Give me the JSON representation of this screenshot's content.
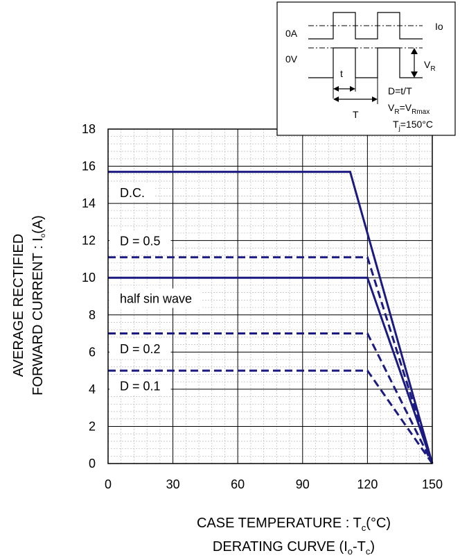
{
  "chart_data": {
    "type": "line",
    "xlabel": {
      "main": "CASE TEMPERATURE : T",
      "sub": "c",
      "tail": "(°C)"
    },
    "caption": {
      "main": "DERATING CURVE (I",
      "sub1": "o",
      "mid": "-T",
      "sub2": "c",
      "tail": ")"
    },
    "ylabel": {
      "line1": "AVERAGE RECTIFIED",
      "line2_main": "FORWARD CURRENT : I",
      "line2_sub": "o",
      "line2_tail": "(A)"
    },
    "xlim": [
      0,
      150
    ],
    "ylim": [
      0,
      18
    ],
    "xticks": [
      "0",
      "30",
      "60",
      "90",
      "120",
      "150"
    ],
    "yticks": [
      "0",
      "2",
      "4",
      "6",
      "8",
      "10",
      "12",
      "14",
      "16",
      "18"
    ],
    "grid": "major and minor",
    "series": [
      {
        "name": "D.C.",
        "style": "solid",
        "x": [
          0,
          112,
          150
        ],
        "y": [
          15.7,
          15.7,
          0
        ]
      },
      {
        "name": "D = 0.5",
        "style": "dashed",
        "x": [
          0,
          120,
          150
        ],
        "y": [
          11.1,
          11.1,
          0
        ]
      },
      {
        "name": "half sin wave",
        "style": "solid",
        "x": [
          0,
          120,
          150
        ],
        "y": [
          10,
          10,
          0
        ]
      },
      {
        "name": "D = 0.2",
        "style": "dashed",
        "x": [
          0,
          120,
          150
        ],
        "y": [
          7,
          7,
          0
        ]
      },
      {
        "name": "D = 0.1",
        "style": "dashed",
        "x": [
          0,
          120,
          150
        ],
        "y": [
          5,
          5,
          0
        ]
      }
    ],
    "series_color": "#1a1a80",
    "inset": {
      "io": "Io",
      "zero_a": "0A",
      "zero_v": "0V",
      "vr_main": "V",
      "vr_sub": "R",
      "t_small": "t",
      "t_big": "T",
      "duty": "D=t/T",
      "vr_eq_main": "V",
      "vr_eq_sub": "R",
      "vr_eq_mid": "=V",
      "vr_eq_sub2": "Rmax",
      "tj_main": "T",
      "tj_sub": "j",
      "tj_tail": "=150°C"
    }
  }
}
